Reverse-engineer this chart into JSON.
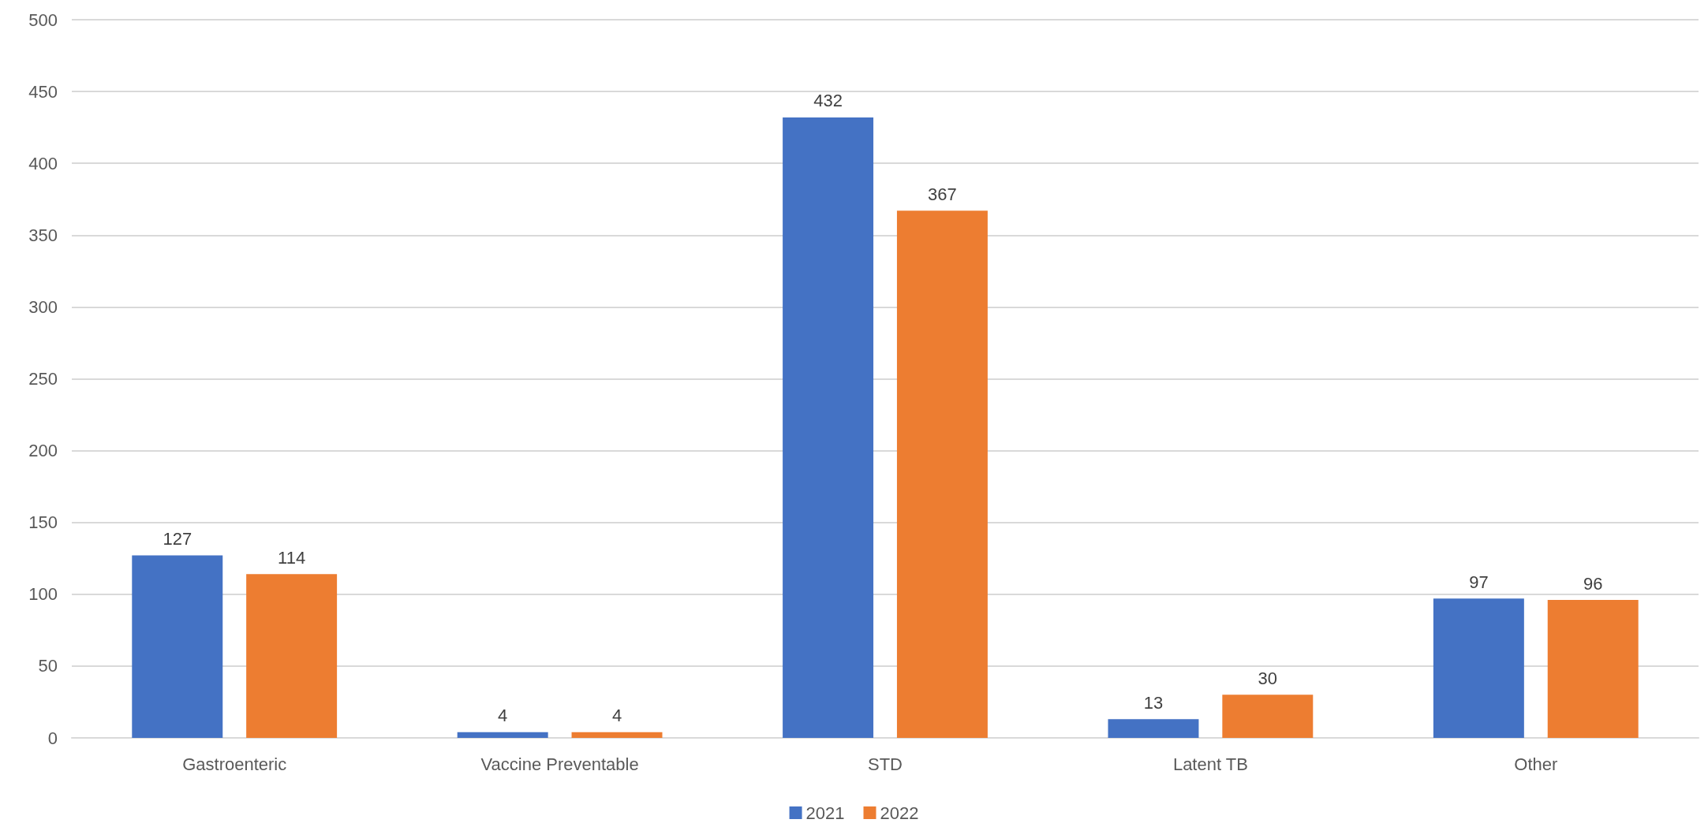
{
  "chart_data": {
    "type": "bar",
    "categories": [
      "Gastroenteric",
      "Vaccine Preventable",
      "STD",
      "Latent TB",
      "Other"
    ],
    "series": [
      {
        "name": "2021",
        "color": "#4472c4",
        "values": [
          127,
          4,
          432,
          13,
          97
        ]
      },
      {
        "name": "2022",
        "color": "#ed7d31",
        "values": [
          114,
          4,
          367,
          30,
          96
        ]
      }
    ],
    "ylim": [
      0,
      500
    ],
    "yticks": [
      0,
      50,
      100,
      150,
      200,
      250,
      300,
      350,
      400,
      450,
      500
    ],
    "grid": "y",
    "legend": "bottom",
    "data_labels": true
  }
}
